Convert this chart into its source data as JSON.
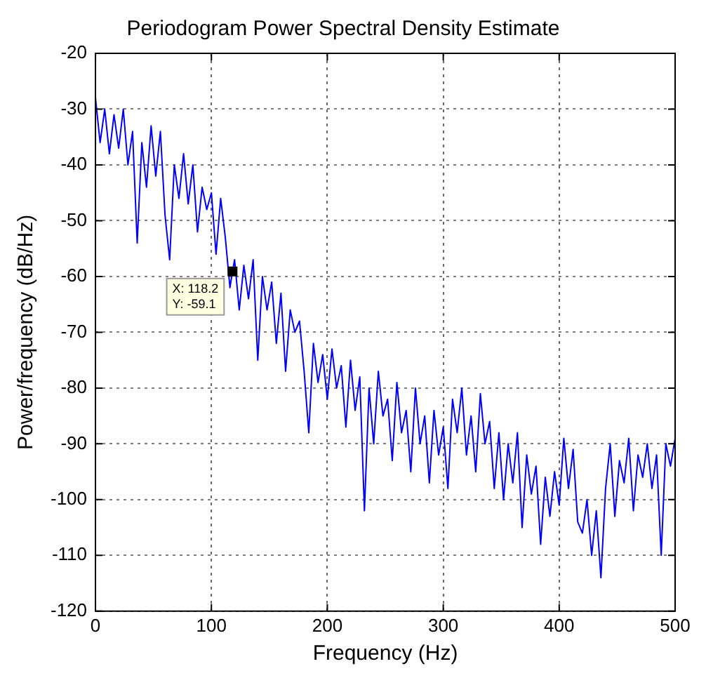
{
  "chart_data": {
    "type": "line",
    "title": "Periodogram Power Spectral Density Estimate",
    "xlabel": "Frequency (Hz)",
    "ylabel": "Power/frequency (dB/Hz)",
    "x": [
      0,
      4,
      8,
      12,
      16,
      20,
      24,
      28,
      32,
      36,
      40,
      44,
      48,
      52,
      56,
      60,
      64,
      68,
      72,
      76,
      80,
      84,
      88,
      92,
      96,
      100,
      104,
      108,
      112,
      116,
      118.2,
      120,
      124,
      128,
      132,
      136,
      140,
      144,
      148,
      152,
      156,
      160,
      164,
      168,
      172,
      176,
      180,
      184,
      188,
      192,
      196,
      200,
      204,
      208,
      212,
      216,
      220,
      224,
      228,
      232,
      236,
      240,
      244,
      248,
      252,
      256,
      260,
      264,
      268,
      272,
      276,
      280,
      284,
      288,
      292,
      296,
      300,
      304,
      308,
      312,
      316,
      320,
      324,
      328,
      332,
      336,
      340,
      344,
      348,
      352,
      356,
      360,
      364,
      368,
      372,
      376,
      380,
      384,
      388,
      392,
      396,
      400,
      404,
      408,
      412,
      416,
      420,
      424,
      428,
      432,
      436,
      440,
      444,
      448,
      452,
      456,
      460,
      464,
      468,
      472,
      476,
      480,
      484,
      488,
      492,
      496,
      500
    ],
    "series": [
      {
        "color": "#0000ff",
        "values": [
          -28,
          -36,
          -30,
          -38,
          -31,
          -37,
          -30,
          -40,
          -34,
          -54,
          -36,
          -44,
          -33,
          -42,
          -34,
          -49,
          -57,
          -40,
          -46,
          -38,
          -47,
          -40,
          -52,
          -44,
          -48,
          -45,
          -56,
          -46,
          -53,
          -62,
          -59.1,
          -57,
          -66,
          -58,
          -64,
          -57,
          -75,
          -60,
          -66,
          -61,
          -72,
          -63,
          -77,
          -66,
          -70,
          -68,
          -77,
          -88,
          -72,
          -79,
          -74,
          -82,
          -73,
          -80,
          -76,
          -87,
          -75,
          -84,
          -78,
          -102,
          -80,
          -90,
          -77,
          -85,
          -82,
          -93,
          -79,
          -88,
          -84,
          -95,
          -80,
          -90,
          -85,
          -97,
          -84,
          -92,
          -87,
          -98,
          -82,
          -88,
          -80,
          -92,
          -85,
          -95,
          -81,
          -90,
          -86,
          -98,
          -88,
          -100,
          -90,
          -97,
          -88,
          -105,
          -92,
          -99,
          -94,
          -108,
          -96,
          -103,
          -95,
          -101,
          -89,
          -98,
          -91,
          -104,
          -106,
          -100,
          -110,
          -102,
          -114,
          -98,
          -90,
          -103,
          -93,
          -97,
          -89,
          -102,
          -92,
          -96,
          -90,
          -98,
          -92,
          -110,
          -90,
          -94,
          -89
        ]
      }
    ],
    "xlim": [
      0,
      500
    ],
    "xticks": [
      0,
      100,
      200,
      300,
      400,
      500
    ],
    "ylim": [
      -120,
      -20
    ],
    "yticks": [
      -120,
      -110,
      -100,
      -90,
      -80,
      -70,
      -60,
      -50,
      -40,
      -30,
      -20
    ],
    "grid": true,
    "legend": false,
    "marker": "none",
    "line_style": "solid",
    "annotations": [
      {
        "text": "X: 118.2\nY: -59.1",
        "x": 118.2,
        "y": -59.1
      }
    ]
  }
}
